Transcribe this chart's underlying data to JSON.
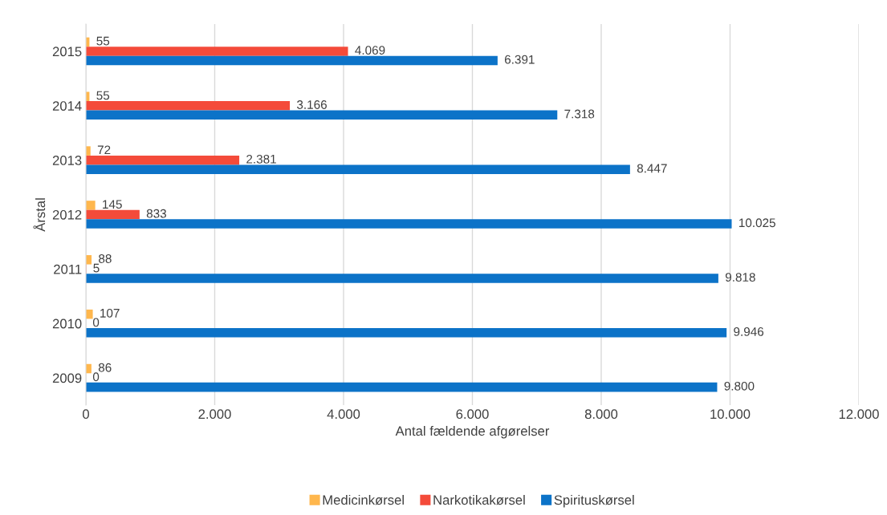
{
  "chart_data": {
    "type": "bar",
    "orientation": "horizontal",
    "xlabel": "Antal fældende afgørelser",
    "ylabel": "Årstal",
    "categories": [
      "2015",
      "2014",
      "2013",
      "2012",
      "2011",
      "2010",
      "2009"
    ],
    "series": [
      {
        "name": "Medicinkørsel",
        "color": "#ffb74d",
        "values": [
          55,
          55,
          72,
          145,
          88,
          107,
          86
        ],
        "value_labels": [
          "55",
          "55",
          "72",
          "145",
          "88",
          "107",
          "86"
        ]
      },
      {
        "name": "Narkotikakørsel",
        "color": "#f44b3a",
        "values": [
          4069,
          3166,
          2381,
          833,
          5,
          0,
          0
        ],
        "value_labels": [
          "4.069",
          "3.166",
          "2.381",
          "833",
          "5",
          "0",
          "0"
        ]
      },
      {
        "name": "Spirituskørsel",
        "color": "#0c73c8",
        "values": [
          6391,
          7318,
          8447,
          10025,
          9818,
          9946,
          9800
        ],
        "value_labels": [
          "6.391",
          "7.318",
          "8.447",
          "10.025",
          "9.818",
          "9.946",
          "9.800"
        ]
      }
    ],
    "xlim": [
      0,
      12000
    ],
    "xticks": [
      0,
      {
        "value": 2000,
        "label": "2.000"
      },
      {
        "value": 4000,
        "label": "4.000"
      },
      {
        "value": 6000,
        "label": "6.000"
      },
      {
        "value": 8000,
        "label": "8.000"
      },
      {
        "value": 10000,
        "label": "10.000"
      },
      {
        "value": 12000,
        "label": "12.000"
      }
    ],
    "grid": "x",
    "legend": "bottom"
  }
}
